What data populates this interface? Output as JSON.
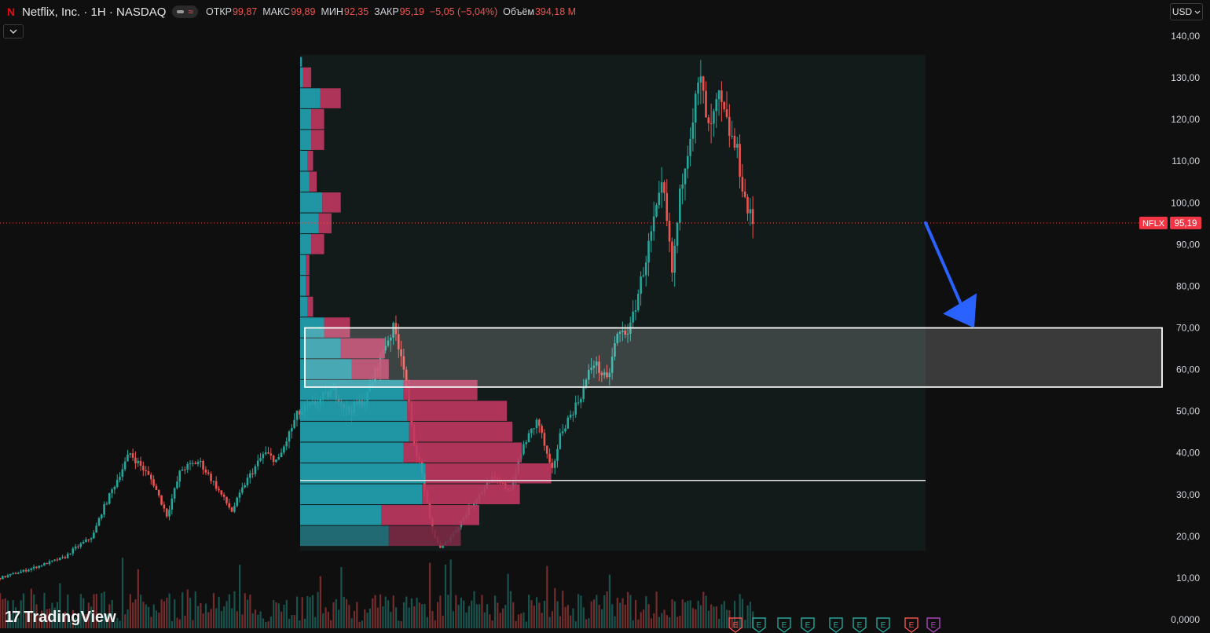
{
  "header": {
    "symbol_title": "Netflix, Inc. · 1H · NASDAQ",
    "approx_symbol": "≈",
    "ohlc": [
      {
        "label": "ОТКР",
        "value": "99,87"
      },
      {
        "label": "МАКС",
        "value": "99,89"
      },
      {
        "label": "МИН",
        "value": "92,35"
      },
      {
        "label": "ЗАКР",
        "value": "95,19"
      },
      {
        "label": "",
        "value": "−5,05 (−5,04%)"
      },
      {
        "label": "Объём",
        "value": "394,18 M"
      }
    ],
    "currency": "USD"
  },
  "brand": {
    "name": "TradingView"
  },
  "icons": [
    "netflix-logo-icon",
    "chevron-down-icon",
    "tradingview-logo-icon",
    "earnings-icon"
  ],
  "colors": {
    "up": "#26a69a",
    "down": "#ef5350",
    "arrow": "#2962ff",
    "profile_up": "#22a3b3",
    "profile_down": "#c03760"
  },
  "chart_data": {
    "type": "candlestick",
    "ticker": "NFLX",
    "last_price": 95.19,
    "last_price_label": "95,19",
    "ylim": [
      0,
      140
    ],
    "y_ticks": [
      "0,0000",
      "10,00",
      "20,00",
      "30,00",
      "40,00",
      "50,00",
      "60,00",
      "70,00",
      "80,00",
      "90,00",
      "100,00",
      "110,00",
      "120,00",
      "130,00",
      "140,00"
    ],
    "y_tick_values": [
      0,
      10,
      20,
      30,
      40,
      50,
      60,
      70,
      80,
      90,
      100,
      110,
      120,
      130,
      140
    ],
    "price_path": [
      {
        "t": 0,
        "p": 10
      },
      {
        "t": 0.03,
        "p": 12
      },
      {
        "t": 0.05,
        "p": 13.5
      },
      {
        "t": 0.07,
        "p": 15
      },
      {
        "t": 0.08,
        "p": 17
      },
      {
        "t": 0.1,
        "p": 20
      },
      {
        "t": 0.11,
        "p": 26
      },
      {
        "t": 0.125,
        "p": 33
      },
      {
        "t": 0.14,
        "p": 40
      },
      {
        "t": 0.155,
        "p": 36
      },
      {
        "t": 0.165,
        "p": 33
      },
      {
        "t": 0.18,
        "p": 25
      },
      {
        "t": 0.195,
        "p": 36
      },
      {
        "t": 0.215,
        "p": 38
      },
      {
        "t": 0.23,
        "p": 33
      },
      {
        "t": 0.25,
        "p": 26
      },
      {
        "t": 0.265,
        "p": 33
      },
      {
        "t": 0.285,
        "p": 40
      },
      {
        "t": 0.3,
        "p": 38
      },
      {
        "t": 0.32,
        "p": 49
      },
      {
        "t": 0.34,
        "p": 52
      },
      {
        "t": 0.36,
        "p": 55
      },
      {
        "t": 0.375,
        "p": 50
      },
      {
        "t": 0.395,
        "p": 53
      },
      {
        "t": 0.415,
        "p": 66
      },
      {
        "t": 0.425,
        "p": 70
      },
      {
        "t": 0.435,
        "p": 62
      },
      {
        "t": 0.445,
        "p": 44
      },
      {
        "t": 0.455,
        "p": 35
      },
      {
        "t": 0.465,
        "p": 22
      },
      {
        "t": 0.475,
        "p": 17
      },
      {
        "t": 0.49,
        "p": 21
      },
      {
        "t": 0.51,
        "p": 28
      },
      {
        "t": 0.53,
        "p": 34
      },
      {
        "t": 0.55,
        "p": 31
      },
      {
        "t": 0.565,
        "p": 42
      },
      {
        "t": 0.58,
        "p": 48
      },
      {
        "t": 0.595,
        "p": 35
      },
      {
        "t": 0.605,
        "p": 45
      },
      {
        "t": 0.625,
        "p": 53
      },
      {
        "t": 0.64,
        "p": 62
      },
      {
        "t": 0.655,
        "p": 57
      },
      {
        "t": 0.665,
        "p": 68
      },
      {
        "t": 0.68,
        "p": 70
      },
      {
        "t": 0.695,
        "p": 85
      },
      {
        "t": 0.705,
        "p": 95
      },
      {
        "t": 0.715,
        "p": 104
      },
      {
        "t": 0.725,
        "p": 83
      },
      {
        "t": 0.735,
        "p": 105
      },
      {
        "t": 0.745,
        "p": 118
      },
      {
        "t": 0.755,
        "p": 130
      },
      {
        "t": 0.765,
        "p": 116
      },
      {
        "t": 0.775,
        "p": 125
      },
      {
        "t": 0.785,
        "p": 118
      },
      {
        "t": 0.795,
        "p": 112
      },
      {
        "t": 0.805,
        "p": 99
      },
      {
        "t": 0.812,
        "p": 95.19
      }
    ],
    "volume_profile": {
      "rows": [
        {
          "low": 132.5,
          "high": 135.0,
          "up": 0.5,
          "down": 0.0
        },
        {
          "low": 127.5,
          "high": 132.5,
          "up": 0.8,
          "down": 2.2
        },
        {
          "low": 122.5,
          "high": 127.5,
          "up": 5.5,
          "down": 5.5
        },
        {
          "low": 117.5,
          "high": 122.5,
          "up": 3.0,
          "down": 3.5
        },
        {
          "low": 112.5,
          "high": 117.5,
          "up": 3.0,
          "down": 3.5
        },
        {
          "low": 107.5,
          "high": 112.5,
          "up": 2.0,
          "down": 1.5
        },
        {
          "low": 102.5,
          "high": 107.5,
          "up": 2.5,
          "down": 2.0
        },
        {
          "low": 97.5,
          "high": 102.5,
          "up": 6.0,
          "down": 5.0
        },
        {
          "low": 92.5,
          "high": 97.5,
          "up": 5.0,
          "down": 3.5
        },
        {
          "low": 87.5,
          "high": 92.5,
          "up": 3.0,
          "down": 3.5
        },
        {
          "low": 82.5,
          "high": 87.5,
          "up": 1.5,
          "down": 1.0
        },
        {
          "low": 77.5,
          "high": 82.5,
          "up": 1.5,
          "down": 1.0
        },
        {
          "low": 72.5,
          "high": 77.5,
          "up": 2.0,
          "down": 1.5
        },
        {
          "low": 67.5,
          "high": 72.5,
          "up": 6.5,
          "down": 7.0
        },
        {
          "low": 62.5,
          "high": 67.5,
          "up": 11.0,
          "down": 12.0
        },
        {
          "low": 57.5,
          "high": 62.5,
          "up": 14.0,
          "down": 10.0
        },
        {
          "low": 52.5,
          "high": 57.5,
          "up": 28.0,
          "down": 20.0
        },
        {
          "low": 47.5,
          "high": 52.5,
          "up": 29.0,
          "down": 27.0
        },
        {
          "low": 42.5,
          "high": 47.5,
          "up": 29.5,
          "down": 28.0
        },
        {
          "low": 37.5,
          "high": 42.5,
          "up": 28.0,
          "down": 32.0
        },
        {
          "low": 32.5,
          "high": 37.5,
          "up": 34.0,
          "down": 34.0
        },
        {
          "low": 27.5,
          "high": 32.5,
          "up": 33.0,
          "down": 26.5
        },
        {
          "low": 22.5,
          "high": 27.5,
          "up": 22.0,
          "down": 26.5
        },
        {
          "low": 17.5,
          "high": 22.5,
          "up": 24.0,
          "down": 19.5
        }
      ]
    },
    "annotations": {
      "zone": {
        "low": 55.8,
        "high": 70.0
      },
      "poc_price": 33.4,
      "arrow_from": 95.19,
      "arrow_to": 70.0
    },
    "earnings_markers": [
      "E",
      "E",
      "E",
      "E",
      "E",
      "E",
      "E",
      "E",
      "E",
      "E"
    ]
  }
}
